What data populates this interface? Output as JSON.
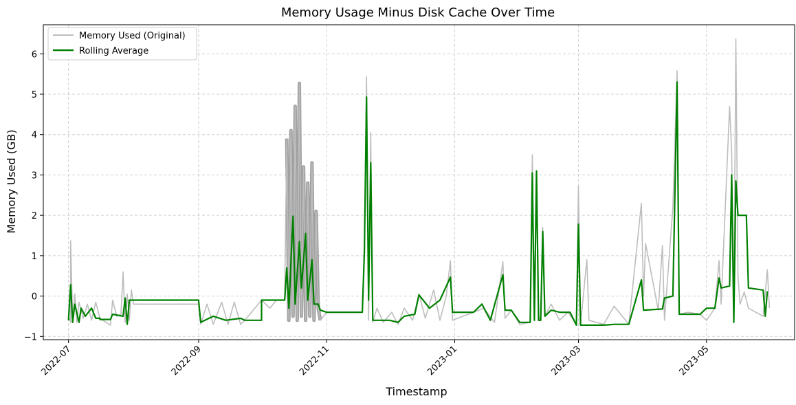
{
  "chart_data": {
    "type": "line",
    "title": "Memory Usage Minus Disk Cache Over Time",
    "xlabel": "Timestamp",
    "ylabel": "Memory Used (GB)",
    "xlim": [
      "2022-06-19",
      "2023-06-12"
    ],
    "ylim": [
      -1.08,
      6.72
    ],
    "x_ticks": [
      "2022-07",
      "2022-09",
      "2022-11",
      "2023-01",
      "2023-03",
      "2023-05"
    ],
    "y_ticks": [
      -1,
      0,
      1,
      2,
      3,
      4,
      5,
      6
    ],
    "grid": true,
    "legend": "top-left",
    "series": [
      {
        "name": "Memory Used (Original)",
        "color": "#bdbdbd",
        "dense_color": "#808080",
        "points": [
          [
            "2022-07-01",
            -0.5
          ],
          [
            "2022-07-02",
            -0.65
          ],
          [
            "2022-07-02",
            1.37
          ],
          [
            "2022-07-03",
            -0.6
          ],
          [
            "2022-07-04",
            0.05
          ],
          [
            "2022-07-05",
            -0.65
          ],
          [
            "2022-07-06",
            -0.15
          ],
          [
            "2022-07-08",
            -0.55
          ],
          [
            "2022-07-10",
            -0.2
          ],
          [
            "2022-07-12",
            -0.6
          ],
          [
            "2022-07-14",
            -0.15
          ],
          [
            "2022-07-16",
            -0.55
          ],
          [
            "2022-07-21",
            -0.72
          ],
          [
            "2022-07-22",
            -0.1
          ],
          [
            "2022-07-24",
            -0.5
          ],
          [
            "2022-07-26",
            -0.45
          ],
          [
            "2022-07-27",
            0.6
          ],
          [
            "2022-07-28",
            -0.65
          ],
          [
            "2022-07-29",
            0.05
          ],
          [
            "2022-07-30",
            -0.6
          ],
          [
            "2022-07-31",
            0.15
          ],
          [
            "2022-08-01",
            -0.2
          ],
          [
            "2022-09-01",
            -0.2
          ],
          [
            "2022-09-02",
            -0.7
          ],
          [
            "2022-09-05",
            -0.2
          ],
          [
            "2022-09-08",
            -0.7
          ],
          [
            "2022-09-12",
            -0.15
          ],
          [
            "2022-09-15",
            -0.7
          ],
          [
            "2022-09-18",
            -0.15
          ],
          [
            "2022-09-21",
            -0.7
          ],
          [
            "2022-09-23",
            -0.6
          ],
          [
            "2022-10-01",
            -0.1
          ],
          [
            "2022-10-05",
            -0.3
          ],
          [
            "2022-10-08",
            -0.1
          ],
          [
            "2022-10-12",
            -0.1
          ],
          [
            "2022-10-13",
            3.9
          ],
          [
            "2022-10-14",
            -0.6
          ],
          [
            "2022-10-15",
            4.1
          ],
          [
            "2022-10-16",
            -0.5
          ],
          [
            "2022-10-17",
            4.7
          ],
          [
            "2022-10-18",
            -0.6
          ],
          [
            "2022-10-19",
            5.27
          ],
          [
            "2022-10-20",
            -0.5
          ],
          [
            "2022-10-21",
            3.2
          ],
          [
            "2022-10-22",
            -0.6
          ],
          [
            "2022-10-23",
            2.8
          ],
          [
            "2022-10-24",
            -0.5
          ],
          [
            "2022-10-25",
            3.3
          ],
          [
            "2022-10-26",
            -0.6
          ],
          [
            "2022-10-27",
            2.1
          ],
          [
            "2022-10-28",
            -0.3
          ],
          [
            "2022-10-29",
            -0.6
          ],
          [
            "2022-11-01",
            -0.4
          ],
          [
            "2022-11-18",
            -0.4
          ],
          [
            "2022-11-19",
            1.2
          ],
          [
            "2022-11-20",
            5.43
          ],
          [
            "2022-11-21",
            -0.6
          ],
          [
            "2022-11-22",
            4.05
          ],
          [
            "2022-11-23",
            -0.65
          ],
          [
            "2022-11-25",
            -0.3
          ],
          [
            "2022-11-28",
            -0.65
          ],
          [
            "2022-12-02",
            -0.4
          ],
          [
            "2022-12-05",
            -0.7
          ],
          [
            "2022-12-08",
            -0.3
          ],
          [
            "2022-12-12",
            -0.6
          ],
          [
            "2022-12-15",
            0.05
          ],
          [
            "2022-12-18",
            -0.55
          ],
          [
            "2022-12-22",
            0.15
          ],
          [
            "2022-12-25",
            -0.6
          ],
          [
            "2022-12-28",
            0.0
          ],
          [
            "2022-12-30",
            0.88
          ],
          [
            "2022-12-31",
            -0.6
          ],
          [
            "2023-01-10",
            -0.4
          ],
          [
            "2023-01-15",
            -0.3
          ],
          [
            "2023-01-20",
            -0.65
          ],
          [
            "2023-01-24",
            0.85
          ],
          [
            "2023-01-25",
            -0.55
          ],
          [
            "2023-01-28",
            -0.35
          ],
          [
            "2023-02-01",
            -0.7
          ],
          [
            "2023-02-06",
            -0.65
          ],
          [
            "2023-02-07",
            3.5
          ],
          [
            "2023-02-08",
            -0.6
          ],
          [
            "2023-02-09",
            3.1
          ],
          [
            "2023-02-10",
            -0.5
          ],
          [
            "2023-02-11",
            -0.6
          ],
          [
            "2023-02-12",
            1.7
          ],
          [
            "2023-02-13",
            -0.5
          ],
          [
            "2023-02-16",
            -0.2
          ],
          [
            "2023-02-20",
            -0.6
          ],
          [
            "2023-02-24",
            -0.4
          ],
          [
            "2023-02-28",
            -0.7
          ],
          [
            "2023-03-01",
            2.73
          ],
          [
            "2023-03-02",
            -0.7
          ],
          [
            "2023-03-05",
            0.9
          ],
          [
            "2023-03-06",
            -0.6
          ],
          [
            "2023-03-13",
            -0.7
          ],
          [
            "2023-03-18",
            -0.25
          ],
          [
            "2023-03-25",
            -0.7
          ],
          [
            "2023-03-31",
            2.3
          ],
          [
            "2023-04-01",
            0.0
          ],
          [
            "2023-04-02",
            1.3
          ],
          [
            "2023-04-08",
            -0.35
          ],
          [
            "2023-04-10",
            1.25
          ],
          [
            "2023-04-11",
            -0.6
          ],
          [
            "2023-04-15",
            2.2
          ],
          [
            "2023-04-17",
            5.58
          ],
          [
            "2023-04-18",
            -0.45
          ],
          [
            "2023-04-22",
            -0.4
          ],
          [
            "2023-04-28",
            -0.45
          ],
          [
            "2023-05-01",
            -0.6
          ],
          [
            "2023-05-05",
            -0.3
          ],
          [
            "2023-05-07",
            0.88
          ],
          [
            "2023-05-08",
            -0.2
          ],
          [
            "2023-05-12",
            4.7
          ],
          [
            "2023-05-13",
            3.6
          ],
          [
            "2023-05-14",
            -0.55
          ],
          [
            "2023-05-15",
            6.37
          ],
          [
            "2023-05-16",
            0.5
          ],
          [
            "2023-05-17",
            -0.2
          ],
          [
            "2023-05-19",
            0.1
          ],
          [
            "2023-05-21",
            -0.3
          ],
          [
            "2023-05-28",
            -0.5
          ],
          [
            "2023-05-30",
            0.65
          ],
          [
            "2023-05-31",
            -0.3
          ]
        ]
      },
      {
        "name": "Rolling Average",
        "color": "#008000",
        "points": [
          [
            "2022-07-01",
            -0.6
          ],
          [
            "2022-07-02",
            0.28
          ],
          [
            "2022-07-03",
            -0.65
          ],
          [
            "2022-07-04",
            -0.2
          ],
          [
            "2022-07-06",
            -0.65
          ],
          [
            "2022-07-07",
            -0.3
          ],
          [
            "2022-07-09",
            -0.5
          ],
          [
            "2022-07-12",
            -0.3
          ],
          [
            "2022-07-14",
            -0.55
          ],
          [
            "2022-07-16",
            -0.55
          ],
          [
            "2022-07-16",
            -0.58
          ],
          [
            "2022-07-21",
            -0.58
          ],
          [
            "2022-07-22",
            -0.45
          ],
          [
            "2022-07-27",
            -0.5
          ],
          [
            "2022-07-28",
            -0.05
          ],
          [
            "2022-07-29",
            -0.7
          ],
          [
            "2022-07-30",
            -0.1
          ],
          [
            "2022-07-31",
            -0.1
          ],
          [
            "2022-09-01",
            -0.1
          ],
          [
            "2022-09-02",
            -0.65
          ],
          [
            "2022-09-08",
            -0.5
          ],
          [
            "2022-09-14",
            -0.6
          ],
          [
            "2022-09-21",
            -0.55
          ],
          [
            "2022-09-23",
            -0.6
          ],
          [
            "2022-10-01",
            -0.6
          ],
          [
            "2022-10-01",
            -0.1
          ],
          [
            "2022-10-08",
            -0.1
          ],
          [
            "2022-10-12",
            -0.1
          ],
          [
            "2022-10-13",
            0.7
          ],
          [
            "2022-10-14",
            -0.3
          ],
          [
            "2022-10-16",
            1.98
          ],
          [
            "2022-10-17",
            -0.2
          ],
          [
            "2022-10-19",
            1.35
          ],
          [
            "2022-10-20",
            0.2
          ],
          [
            "2022-10-22",
            1.55
          ],
          [
            "2022-10-23",
            -0.1
          ],
          [
            "2022-10-25",
            0.9
          ],
          [
            "2022-10-26",
            -0.2
          ],
          [
            "2022-10-27",
            -0.2
          ],
          [
            "2022-10-28",
            -0.2
          ],
          [
            "2022-10-29",
            -0.35
          ],
          [
            "2022-11-01",
            -0.4
          ],
          [
            "2022-11-18",
            -0.4
          ],
          [
            "2022-11-19",
            1.1
          ],
          [
            "2022-11-20",
            4.93
          ],
          [
            "2022-11-21",
            -0.1
          ],
          [
            "2022-11-22",
            3.3
          ],
          [
            "2022-11-23",
            -0.6
          ],
          [
            "2022-12-01",
            -0.6
          ],
          [
            "2022-12-05",
            -0.65
          ],
          [
            "2022-12-08",
            -0.5
          ],
          [
            "2022-12-13",
            -0.45
          ],
          [
            "2022-12-15",
            0.03
          ],
          [
            "2022-12-20",
            -0.3
          ],
          [
            "2022-12-25",
            -0.1
          ],
          [
            "2022-12-30",
            0.47
          ],
          [
            "2022-12-31",
            -0.4
          ],
          [
            "2023-01-10",
            -0.4
          ],
          [
            "2023-01-14",
            -0.2
          ],
          [
            "2023-01-18",
            -0.6
          ],
          [
            "2023-01-24",
            0.53
          ],
          [
            "2023-01-25",
            -0.35
          ],
          [
            "2023-01-28",
            -0.35
          ],
          [
            "2023-02-01",
            -0.65
          ],
          [
            "2023-02-06",
            -0.65
          ],
          [
            "2023-02-07",
            3.05
          ],
          [
            "2023-02-08",
            -0.6
          ],
          [
            "2023-02-09",
            3.1
          ],
          [
            "2023-02-10",
            -0.6
          ],
          [
            "2023-02-11",
            -0.6
          ],
          [
            "2023-02-12",
            1.6
          ],
          [
            "2023-02-13",
            -0.5
          ],
          [
            "2023-02-16",
            -0.35
          ],
          [
            "2023-02-20",
            -0.4
          ],
          [
            "2023-02-25",
            -0.4
          ],
          [
            "2023-02-28",
            -0.72
          ],
          [
            "2023-03-01",
            1.78
          ],
          [
            "2023-03-02",
            -0.72
          ],
          [
            "2023-03-05",
            -0.72
          ],
          [
            "2023-03-13",
            -0.72
          ],
          [
            "2023-03-18",
            -0.7
          ],
          [
            "2023-03-25",
            -0.7
          ],
          [
            "2023-03-31",
            0.4
          ],
          [
            "2023-04-01",
            -0.35
          ],
          [
            "2023-04-10",
            -0.32
          ],
          [
            "2023-04-11",
            -0.05
          ],
          [
            "2023-04-15",
            0.0
          ],
          [
            "2023-04-17",
            5.3
          ],
          [
            "2023-04-18",
            -0.45
          ],
          [
            "2023-04-28",
            -0.45
          ],
          [
            "2023-05-01",
            -0.3
          ],
          [
            "2023-05-05",
            -0.3
          ],
          [
            "2023-05-07",
            0.45
          ],
          [
            "2023-05-08",
            0.2
          ],
          [
            "2023-05-12",
            0.25
          ],
          [
            "2023-05-13",
            3.0
          ],
          [
            "2023-05-14",
            -0.65
          ],
          [
            "2023-05-15",
            2.85
          ],
          [
            "2023-05-16",
            2.0
          ],
          [
            "2023-05-20",
            2.0
          ],
          [
            "2023-05-21",
            0.2
          ],
          [
            "2023-05-28",
            0.15
          ],
          [
            "2023-05-29",
            -0.5
          ],
          [
            "2023-05-30",
            0.12
          ]
        ]
      }
    ]
  }
}
